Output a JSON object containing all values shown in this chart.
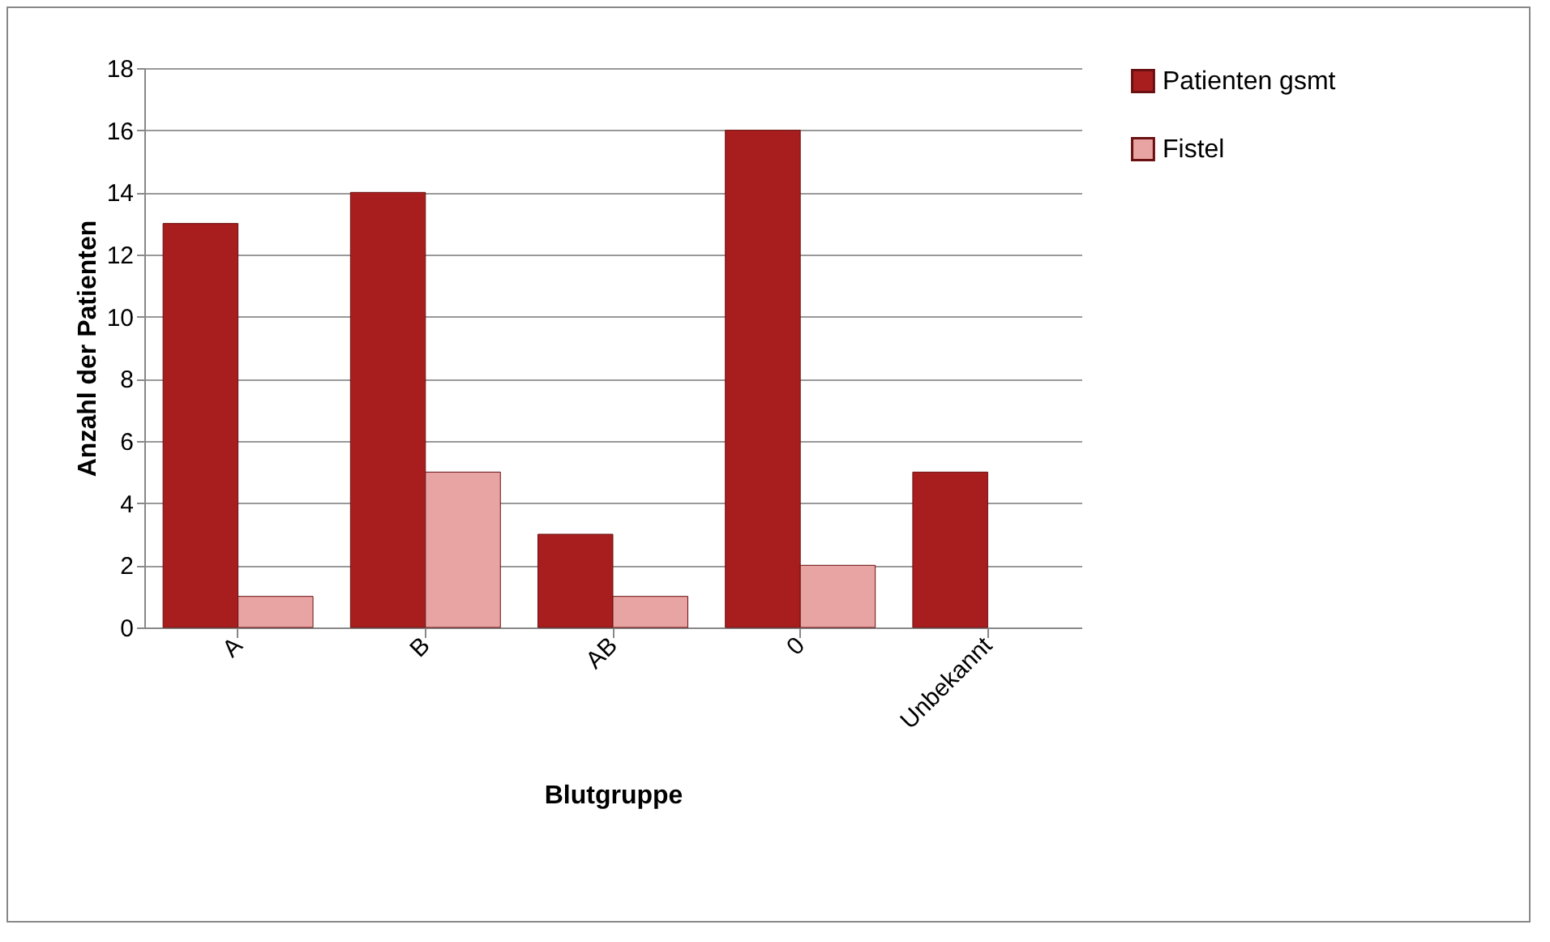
{
  "chart_data": {
    "type": "bar",
    "xlabel": "Blutgruppe",
    "ylabel": "Anzahl der Patienten",
    "categories": [
      "A",
      "B",
      "AB",
      "0",
      "Unbekannt"
    ],
    "series": [
      {
        "name": "Patienten gsmt",
        "color": "#a81e1e",
        "values": [
          13,
          14,
          3,
          16,
          5
        ]
      },
      {
        "name": "Fistel",
        "color": "#e8a3a3",
        "values": [
          1,
          5,
          1,
          2,
          null
        ]
      }
    ],
    "ylim": [
      0,
      18
    ],
    "yticks": [
      0,
      2,
      4,
      6,
      8,
      10,
      12,
      14,
      16,
      18
    ],
    "grid": "y",
    "legend": "right"
  }
}
